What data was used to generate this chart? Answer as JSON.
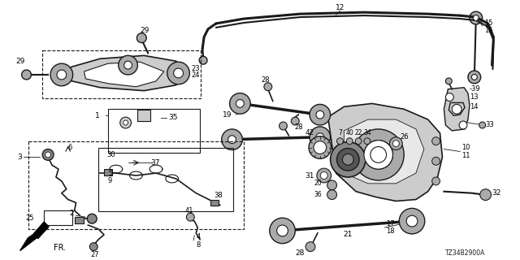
{
  "background_color": "#ffffff",
  "figsize": [
    6.4,
    3.2
  ],
  "dpi": 100,
  "diagram_ref": "TZ34B2900A",
  "line_color": "#1a1a1a",
  "gray_fill": "#cccccc",
  "dark_gray": "#888888",
  "mid_gray": "#aaaaaa"
}
